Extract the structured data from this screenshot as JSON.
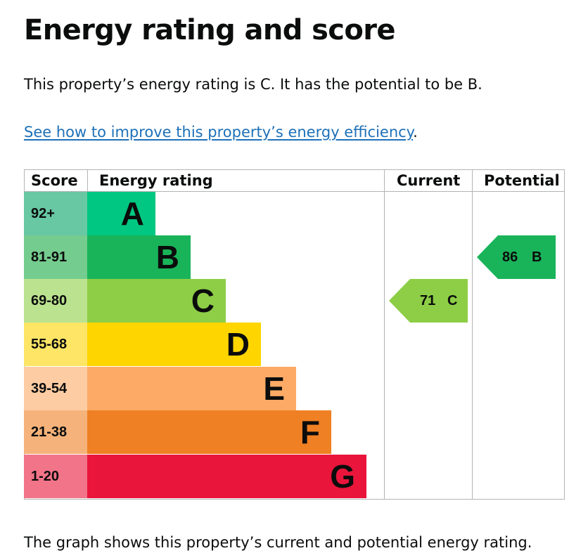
{
  "heading": "Energy rating and score",
  "summary": "This property’s energy rating is C. It has the potential to be B.",
  "improve_link": "See how to improve this property’s energy efficiency",
  "improve_link_suffix": ".",
  "table": {
    "col_score": "Score",
    "col_rating": "Energy rating",
    "col_current": "Current",
    "col_potential": "Potential"
  },
  "bands": [
    {
      "score": "92+",
      "letter": "A",
      "bar_color": "#00c781",
      "score_color": "#67c8a3"
    },
    {
      "score": "81-91",
      "letter": "B",
      "bar_color": "#19b459",
      "score_color": "#75cc8f"
    },
    {
      "score": "69-80",
      "letter": "C",
      "bar_color": "#8dce46",
      "score_color": "#bbe38f"
    },
    {
      "score": "55-68",
      "letter": "D",
      "bar_color": "#ffd500",
      "score_color": "#ffe566"
    },
    {
      "score": "39-54",
      "letter": "E",
      "bar_color": "#fcaa65",
      "score_color": "#fdcca3"
    },
    {
      "score": "21-38",
      "letter": "F",
      "bar_color": "#ef8023",
      "score_color": "#f5b37b"
    },
    {
      "score": "1-20",
      "letter": "G",
      "bar_color": "#e9153b",
      "score_color": "#f27489"
    }
  ],
  "current": {
    "score": "71",
    "letter": "C",
    "color": "#8dce46"
  },
  "potential": {
    "score": "86",
    "letter": "B",
    "color": "#19b459"
  },
  "caption": "The graph shows this property’s current and potential energy rating."
}
